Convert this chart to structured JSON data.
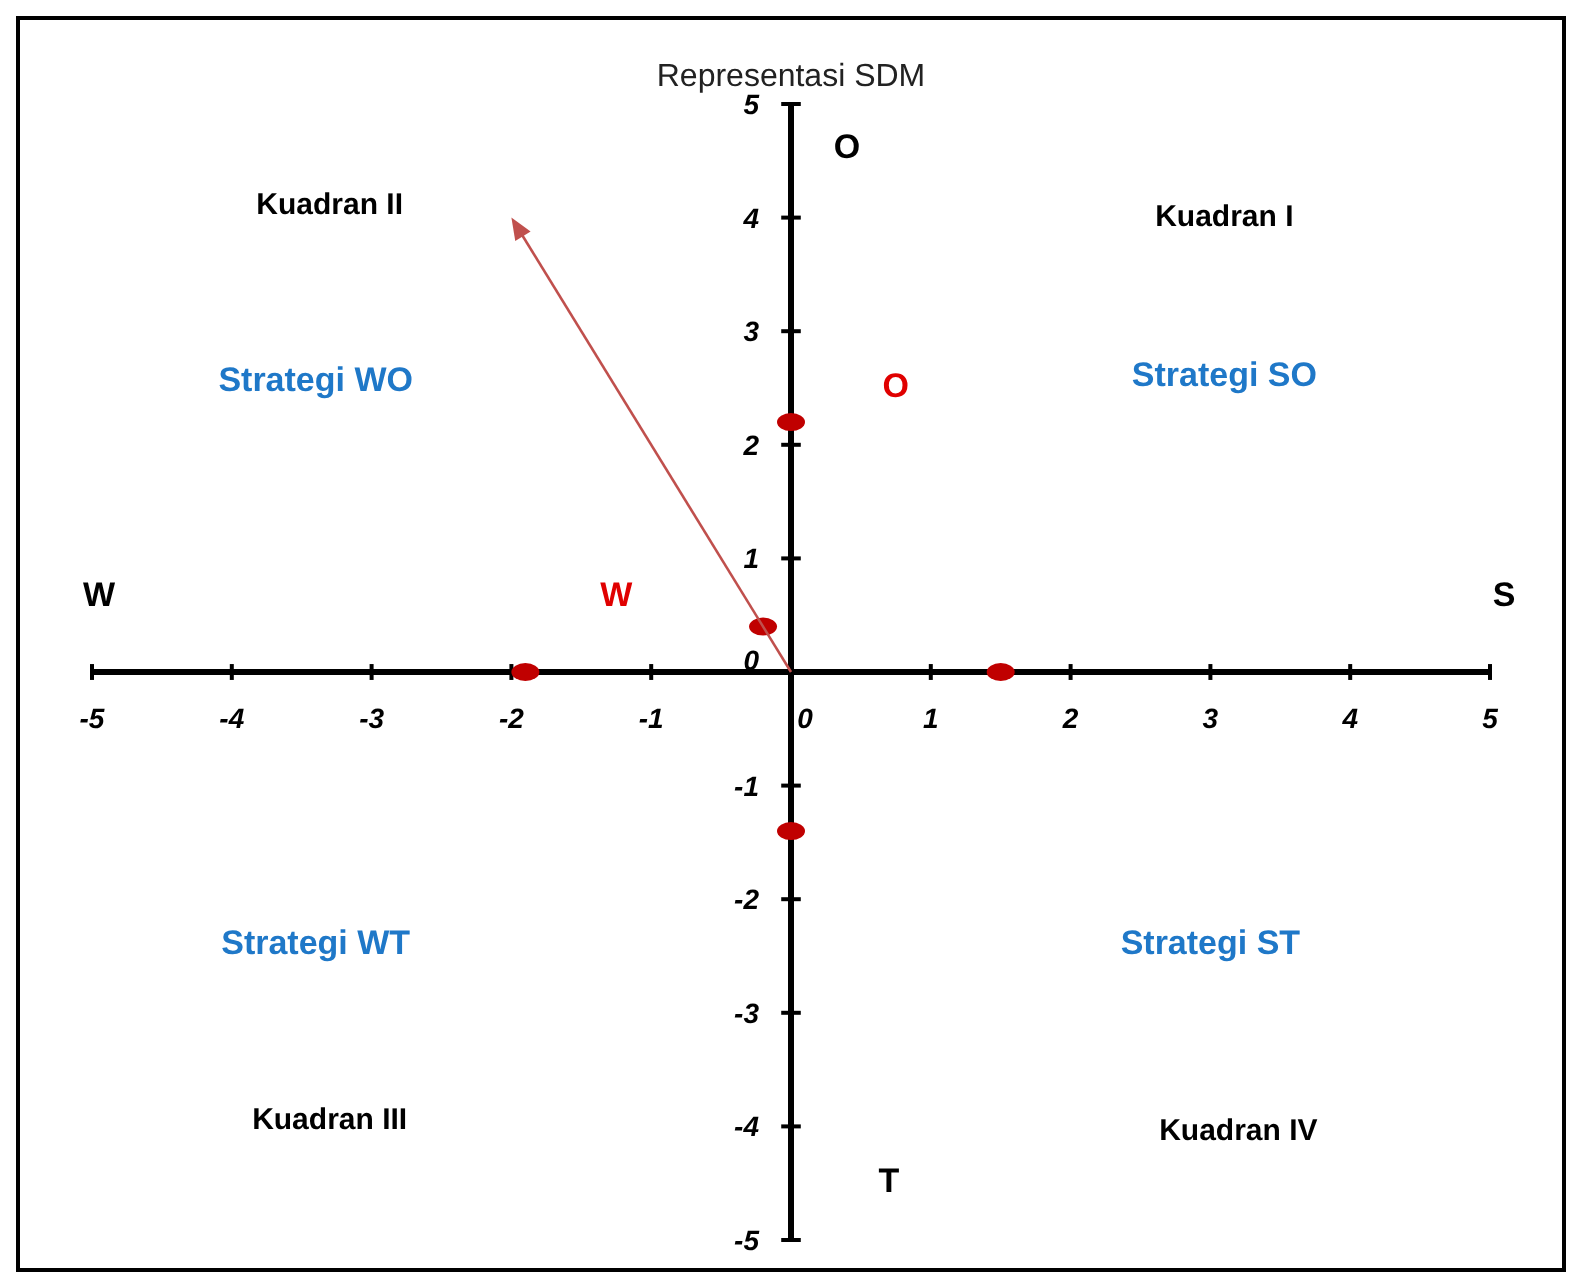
{
  "chart_data": {
    "type": "scatter",
    "title": "Representasi SDM",
    "xlim": [
      -5,
      5
    ],
    "ylim": [
      -5,
      5
    ],
    "xticks": [
      -5,
      -4,
      -3,
      -2,
      -1,
      0,
      1,
      2,
      3,
      4,
      5
    ],
    "yticks": [
      -5,
      -4,
      -3,
      -2,
      -1,
      0,
      1,
      2,
      3,
      4,
      5
    ],
    "series": [
      {
        "color": "#c00000",
        "x": [
          -1.9,
          1.5,
          0,
          0,
          -0.2
        ],
        "values": [
          0,
          0,
          2.2,
          -1.4,
          0.4
        ]
      }
    ],
    "annotations": [
      "W",
      "S",
      "O",
      "T",
      "Kuadran II",
      "Kuadran I",
      "Kuadran III",
      "Kuadran IV",
      "Strategi WO",
      "Strategi SO",
      "Strategi WT",
      "Strategi ST",
      "W",
      "O"
    ],
    "grid": false,
    "legend": false
  }
}
